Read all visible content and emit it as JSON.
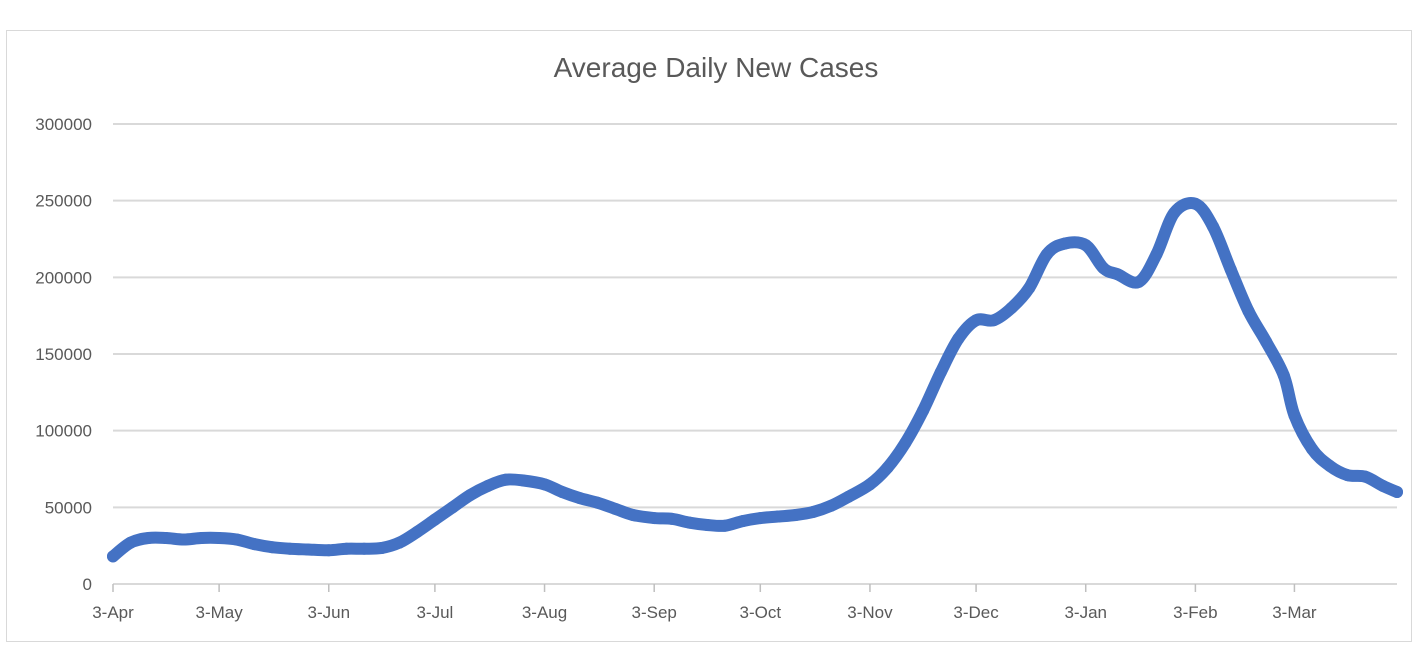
{
  "chart_data": {
    "type": "line",
    "title": "Average Daily New Cases",
    "xlabel": "",
    "ylabel": "",
    "ylim": [
      0,
      300000
    ],
    "yticks": [
      "0",
      "50000",
      "100000",
      "150000",
      "200000",
      "250000",
      "300000"
    ],
    "xticks": [
      "3-Apr",
      "3-May",
      "3-Jun",
      "3-Jul",
      "3-Aug",
      "3-Sep",
      "3-Oct",
      "3-Nov",
      "3-Dec",
      "3-Jan",
      "3-Feb",
      "3-Mar"
    ],
    "grid": true,
    "legend": "none",
    "series": [
      {
        "color": "#4472c4",
        "x": [
          "3-Apr",
          "8-Apr",
          "13-Apr",
          "18-Apr",
          "23-Apr",
          "28-Apr",
          "3-May",
          "8-May",
          "13-May",
          "18-May",
          "23-May",
          "28-May",
          "3-Jun",
          "8-Jun",
          "13-Jun",
          "18-Jun",
          "23-Jun",
          "28-Jun",
          "3-Jul",
          "8-Jul",
          "13-Jul",
          "18-Jul",
          "23-Jul",
          "28-Jul",
          "3-Aug",
          "8-Aug",
          "13-Aug",
          "18-Aug",
          "23-Aug",
          "28-Aug",
          "3-Sep",
          "8-Sep",
          "13-Sep",
          "18-Sep",
          "23-Sep",
          "28-Sep",
          "3-Oct",
          "8-Oct",
          "13-Oct",
          "18-Oct",
          "23-Oct",
          "28-Oct",
          "3-Nov",
          "8-Nov",
          "13-Nov",
          "18-Nov",
          "23-Nov",
          "28-Nov",
          "3-Dec",
          "8-Dec",
          "13-Dec",
          "18-Dec",
          "23-Dec",
          "28-Dec",
          "3-Jan",
          "8-Jan",
          "12-Jan",
          "18-Jan",
          "23-Jan",
          "28-Jan",
          "3-Feb",
          "8-Feb",
          "13-Feb",
          "18-Feb",
          "23-Feb",
          "28-Feb",
          "3-Mar",
          "8-Mar",
          "13-Mar",
          "18-Mar",
          "23-Mar",
          "28-Mar",
          "1-Apr"
        ],
        "values": [
          18000,
          27000,
          30000,
          30000,
          29000,
          30000,
          30000,
          29000,
          26000,
          24000,
          23000,
          22500,
          22000,
          23000,
          23000,
          23500,
          27000,
          34000,
          42000,
          50000,
          58000,
          64000,
          68000,
          67500,
          65000,
          60000,
          56000,
          53000,
          49000,
          45000,
          43000,
          42500,
          40000,
          38500,
          38000,
          41000,
          43000,
          44000,
          45000,
          47000,
          51000,
          57000,
          65000,
          76000,
          92000,
          113000,
          138000,
          160000,
          172000,
          172000,
          180000,
          193000,
          215000,
          222000,
          221000,
          206000,
          202000,
          197000,
          215000,
          242000,
          248000,
          233000,
          205000,
          178000,
          158000,
          136000,
          110000,
          88000,
          77000,
          71000,
          70000,
          64000,
          60000
        ]
      }
    ]
  }
}
